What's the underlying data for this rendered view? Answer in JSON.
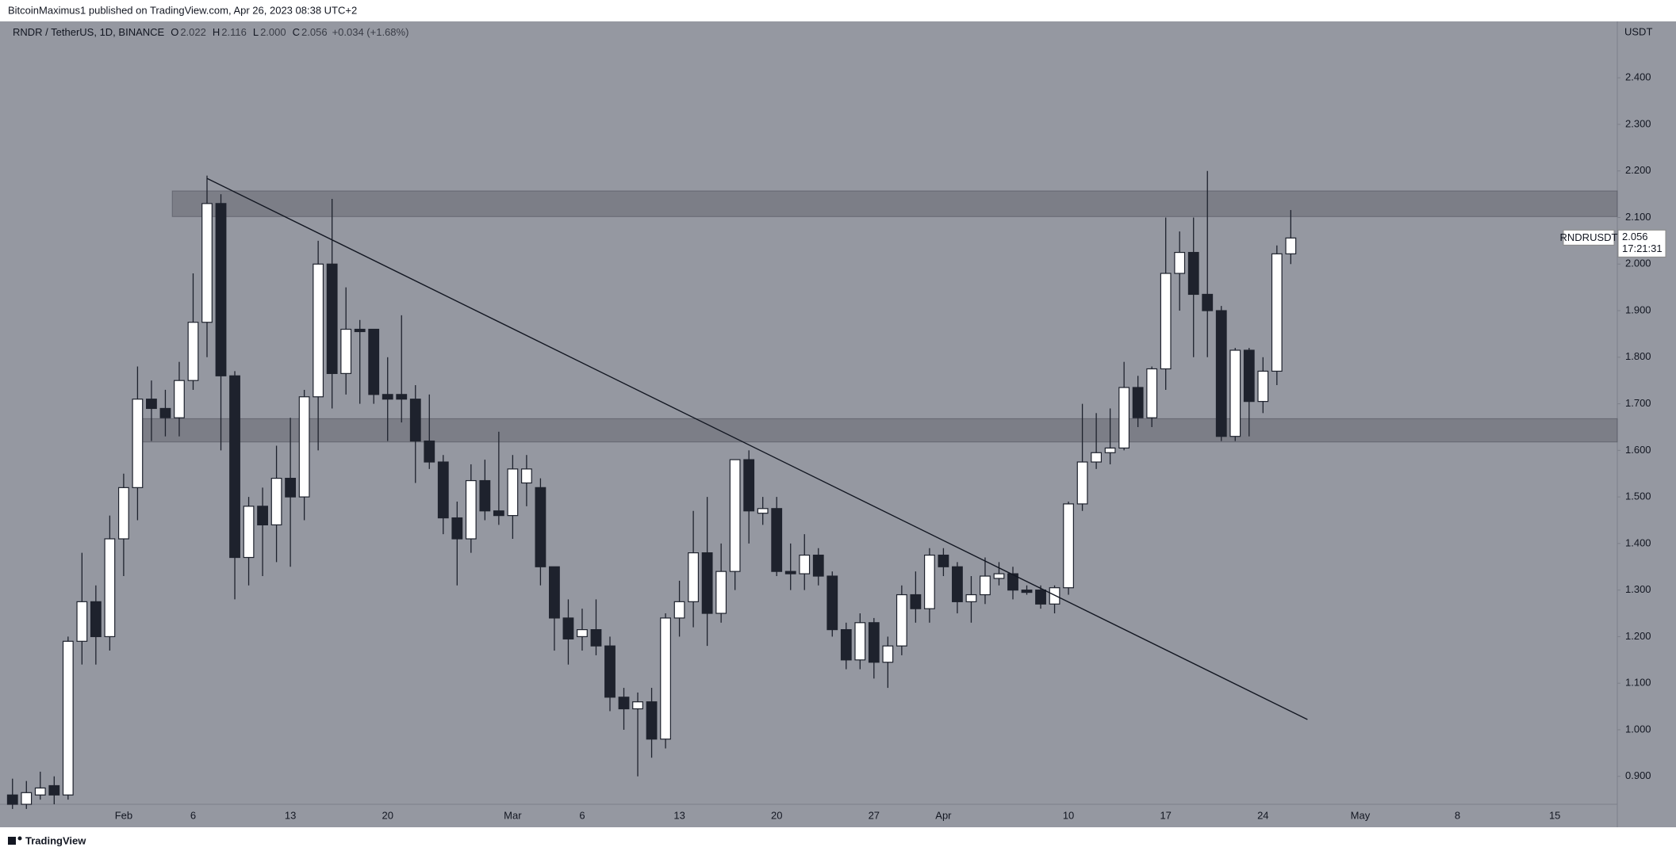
{
  "header": "BitcoinMaximus1 published on TradingView.com, Apr 26, 2023 08:38 UTC+2",
  "footer": "TradingView",
  "chart_data": {
    "type": "candlestick",
    "legend": {
      "symbol": "RNDR / TetherUS, 1D, BINANCE",
      "o_label": "O",
      "open": "2.022",
      "h_label": "H",
      "high": "2.116",
      "l_label": "L",
      "low": "2.000",
      "c_label": "C",
      "close": "2.056",
      "change": "+0.034 (+1.68%)"
    },
    "currency": "USDT",
    "price_label": {
      "symbol": "RNDRUSDT",
      "price": "2.056",
      "countdown": "17:21:31"
    },
    "categories": [
      null,
      null,
      null,
      null,
      null,
      null,
      null,
      null,
      "Feb",
      null,
      null,
      null,
      null,
      "6",
      null,
      null,
      null,
      null,
      null,
      null,
      "13",
      null,
      null,
      null,
      null,
      null,
      null,
      "20",
      null,
      null,
      null,
      null,
      null,
      null,
      null,
      null,
      "Mar",
      null,
      null,
      null,
      null,
      "6",
      null,
      null,
      null,
      null,
      null,
      null,
      "13",
      null,
      null,
      null,
      null,
      null,
      null,
      "20",
      null,
      null,
      null,
      null,
      null,
      null,
      "27",
      null,
      null,
      null,
      null,
      "Apr",
      null,
      null,
      null,
      null,
      null,
      null,
      null,
      null,
      "10",
      null,
      null,
      null,
      null,
      null,
      null,
      "17",
      null,
      null,
      null,
      null,
      null,
      null,
      "24",
      null,
      null,
      null,
      null,
      null,
      null,
      "May",
      null,
      null,
      null,
      null,
      null,
      null,
      "8",
      null,
      null,
      null,
      null,
      null,
      null,
      "15",
      null,
      null,
      null,
      null
    ],
    "open": [
      0.86,
      0.84,
      0.86,
      0.88,
      0.86,
      1.19,
      1.275,
      1.2,
      1.41,
      1.52,
      1.71,
      1.69,
      1.67,
      1.75,
      1.875,
      2.13,
      1.76,
      1.37,
      1.48,
      1.44,
      1.54,
      1.5,
      1.715,
      2.0,
      1.765,
      1.86,
      1.86,
      1.72,
      1.72,
      1.71,
      1.62,
      1.575,
      1.455,
      1.41,
      1.535,
      1.47,
      1.46,
      1.53,
      1.52,
      1.35,
      1.24,
      1.2,
      1.215,
      1.18,
      1.07,
      1.045,
      1.06,
      0.98,
      1.24,
      1.275,
      1.38,
      1.25,
      1.34,
      1.58,
      1.465,
      1.475,
      1.34,
      1.335,
      1.375,
      1.33,
      1.215,
      1.15,
      1.23,
      1.145,
      1.18,
      1.29,
      1.26,
      1.375,
      1.35,
      1.275,
      1.29,
      1.325,
      1.335,
      1.3,
      1.3,
      1.27,
      1.305,
      1.485,
      1.575,
      1.595,
      1.605,
      1.735,
      1.67,
      1.775,
      1.98,
      2.025,
      1.935,
      1.9,
      1.63,
      1.815,
      1.705,
      1.77,
      2.022,
      null,
      null,
      null,
      null,
      null,
      null,
      null,
      null,
      null,
      null,
      null,
      null,
      null,
      null,
      null,
      null,
      null,
      null,
      null,
      null,
      null,
      null,
      null
    ],
    "high": [
      0.895,
      0.89,
      0.91,
      0.9,
      1.2,
      1.38,
      1.31,
      1.46,
      1.55,
      1.78,
      1.75,
      1.73,
      1.79,
      1.98,
      2.19,
      2.15,
      1.77,
      1.5,
      1.52,
      1.61,
      1.67,
      1.73,
      2.05,
      2.14,
      1.95,
      1.88,
      1.86,
      1.8,
      1.89,
      1.74,
      1.72,
      1.59,
      1.49,
      1.57,
      1.58,
      1.64,
      1.59,
      1.59,
      1.54,
      1.35,
      1.28,
      1.26,
      1.28,
      1.2,
      1.09,
      1.08,
      1.09,
      1.25,
      1.32,
      1.47,
      1.5,
      1.4,
      1.58,
      1.6,
      1.5,
      1.5,
      1.4,
      1.42,
      1.39,
      1.34,
      1.23,
      1.25,
      1.24,
      1.2,
      1.31,
      1.34,
      1.39,
      1.39,
      1.36,
      1.33,
      1.37,
      1.36,
      1.35,
      1.31,
      1.31,
      1.31,
      1.49,
      1.7,
      1.68,
      1.69,
      1.79,
      1.76,
      1.78,
      2.1,
      2.07,
      2.1,
      2.2,
      1.91,
      1.82,
      1.82,
      1.8,
      2.04,
      2.116,
      null,
      null,
      null,
      null,
      null,
      null,
      null,
      null,
      null,
      null,
      null,
      null,
      null,
      null,
      null,
      null,
      null,
      null,
      null,
      null,
      null,
      null,
      null
    ],
    "low": [
      0.83,
      0.83,
      0.85,
      0.84,
      0.85,
      1.14,
      1.14,
      1.17,
      1.33,
      1.45,
      1.62,
      1.63,
      1.63,
      1.73,
      1.8,
      1.6,
      1.28,
      1.31,
      1.33,
      1.36,
      1.35,
      1.45,
      1.6,
      1.69,
      1.72,
      1.7,
      1.7,
      1.62,
      1.66,
      1.53,
      1.56,
      1.42,
      1.31,
      1.38,
      1.45,
      1.44,
      1.41,
      1.48,
      1.31,
      1.17,
      1.14,
      1.17,
      1.16,
      1.04,
      1.0,
      0.9,
      0.94,
      0.96,
      1.2,
      1.22,
      1.18,
      1.23,
      1.3,
      1.4,
      1.44,
      1.33,
      1.3,
      1.3,
      1.31,
      1.2,
      1.13,
      1.13,
      1.11,
      1.09,
      1.16,
      1.23,
      1.23,
      1.33,
      1.25,
      1.23,
      1.27,
      1.31,
      1.28,
      1.29,
      1.26,
      1.25,
      1.29,
      1.47,
      1.56,
      1.57,
      1.6,
      1.65,
      1.65,
      1.73,
      1.9,
      1.8,
      1.8,
      1.62,
      1.62,
      1.63,
      1.68,
      1.74,
      2.0,
      null,
      null,
      null,
      null,
      null,
      null,
      null,
      null,
      null,
      null,
      null,
      null,
      null,
      null,
      null,
      null,
      null,
      null,
      null,
      null,
      null,
      null,
      null
    ],
    "close": [
      0.84,
      0.865,
      0.875,
      0.86,
      1.19,
      1.275,
      1.2,
      1.41,
      1.52,
      1.71,
      1.69,
      1.67,
      1.75,
      1.875,
      2.13,
      1.76,
      1.37,
      1.48,
      1.44,
      1.54,
      1.5,
      1.715,
      2.0,
      1.765,
      1.86,
      1.855,
      1.72,
      1.71,
      1.71,
      1.62,
      1.575,
      1.455,
      1.41,
      1.535,
      1.47,
      1.46,
      1.56,
      1.56,
      1.35,
      1.24,
      1.195,
      1.215,
      1.18,
      1.07,
      1.045,
      1.06,
      0.98,
      1.24,
      1.275,
      1.38,
      1.25,
      1.34,
      1.58,
      1.47,
      1.475,
      1.34,
      1.335,
      1.375,
      1.33,
      1.215,
      1.15,
      1.23,
      1.145,
      1.18,
      1.29,
      1.26,
      1.375,
      1.35,
      1.275,
      1.29,
      1.33,
      1.335,
      1.3,
      1.295,
      1.27,
      1.305,
      1.485,
      1.575,
      1.595,
      1.605,
      1.735,
      1.67,
      1.775,
      1.98,
      2.025,
      1.935,
      1.9,
      1.63,
      1.815,
      1.705,
      1.77,
      2.022,
      2.056,
      null,
      null,
      null,
      null,
      null,
      null,
      null,
      null,
      null,
      null,
      null,
      null,
      null,
      null,
      null,
      null,
      null,
      null,
      null,
      null,
      null,
      null,
      null
    ],
    "up_color": "#ffffff",
    "down_color": "#1e222d",
    "zones": [
      {
        "low": 2.102,
        "high": 2.157,
        "start": 12
      },
      {
        "low": 1.618,
        "high": 1.668,
        "start": 9.4
      }
    ],
    "trendline": {
      "start": [
        14,
        2.184
      ],
      "end": [
        93.2,
        1.022
      ]
    },
    "ylim": [
      0.84,
      2.516
    ],
    "yticks": [
      {
        "value": 0.9,
        "label": "0.900"
      },
      {
        "value": 1.0,
        "label": "1.000"
      },
      {
        "value": 1.1,
        "label": "1.100"
      },
      {
        "value": 1.2,
        "label": "1.200"
      },
      {
        "value": 1.3,
        "label": "1.300"
      },
      {
        "value": 1.4,
        "label": "1.400"
      },
      {
        "value": 1.5,
        "label": "1.500"
      },
      {
        "value": 1.6,
        "label": "1.600"
      },
      {
        "value": 1.7,
        "label": "1.700"
      },
      {
        "value": 1.8,
        "label": "1.800"
      },
      {
        "value": 1.9,
        "label": "1.900"
      },
      {
        "value": 2.0,
        "label": "2.000"
      },
      {
        "value": 2.1,
        "label": "2.100"
      },
      {
        "value": 2.2,
        "label": "2.200"
      },
      {
        "value": 2.3,
        "label": "2.300"
      },
      {
        "value": 2.4,
        "label": "2.400"
      }
    ]
  }
}
